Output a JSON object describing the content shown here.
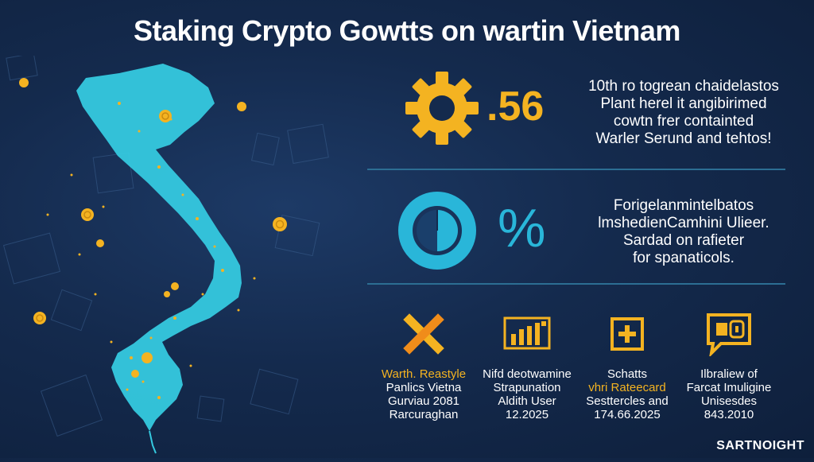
{
  "title": "Staking Crypto Gowtts on wartin Vietnam",
  "stat1": {
    "value": ".56",
    "icon": "gear-icon",
    "lines": [
      "10th ro togrean chaidelastos",
      "Plant herel it angibirimed",
      "cowtn frer containted",
      "Warler Serund and tehtos!"
    ]
  },
  "stat2": {
    "value": "%",
    "icon": "pie-chart-icon",
    "lines": [
      "Forigelanmintelbatos",
      "lmshedienCamhini Ulieer.",
      "Sardad on rafieter",
      "for spanaticols."
    ]
  },
  "features": [
    {
      "icon": "cross-icon",
      "lines": [
        "Warth. Reastyle",
        "Panlics Vietna",
        "Gurviau 2081",
        "Rarcuraghan"
      ]
    },
    {
      "icon": "bar-chart-icon",
      "lines": [
        "Nifd deotwamine",
        "Strapunation",
        "Aldith User",
        "12.2025"
      ]
    },
    {
      "icon": "plus-box-icon",
      "lines": [
        "Schatts",
        "vhri Rateecard",
        "Sesttercles and",
        "174.66.2025"
      ]
    },
    {
      "icon": "chat-lock-icon",
      "lines": [
        "Ilbraliew of",
        "Farcat Imuligine",
        "Unisesdes",
        "843.2010"
      ]
    }
  ],
  "brand": "SARTNOIGHT",
  "colors": {
    "accent": "#f4b321",
    "teal": "#29b6d9",
    "map": "#35c9df",
    "bg": "#142a4d"
  }
}
